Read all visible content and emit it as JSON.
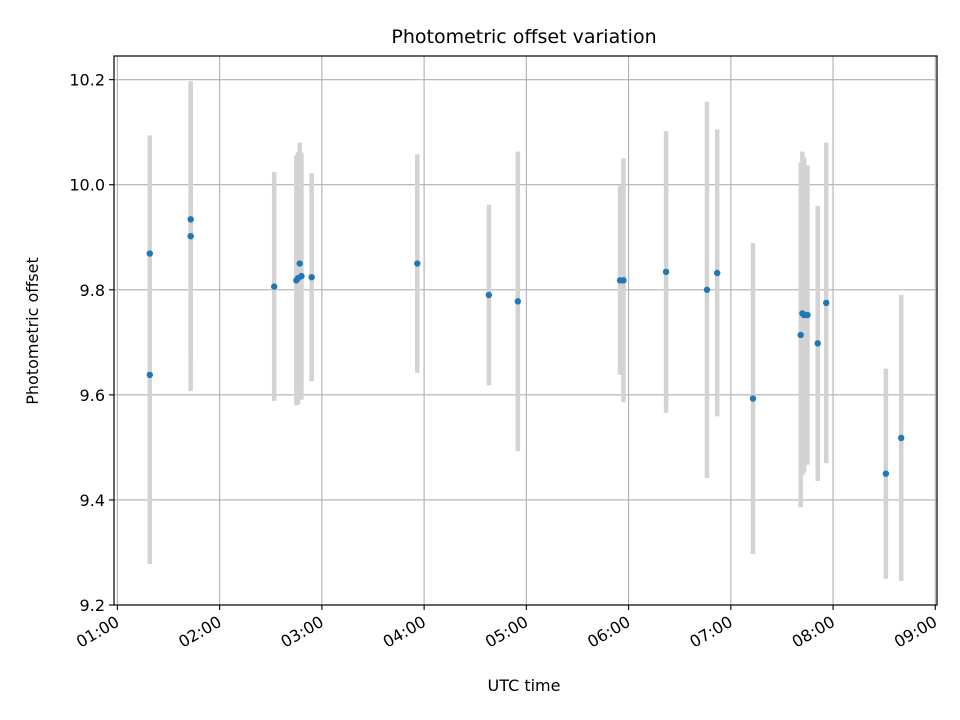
{
  "chart_data": {
    "type": "scatter",
    "title": "Photometric offset variation",
    "xlabel": "UTC time",
    "ylabel": "Photometric offset",
    "x_ticks": [
      "01:00",
      "02:00",
      "03:00",
      "04:00",
      "05:00",
      "06:00",
      "07:00",
      "08:00",
      "09:00"
    ],
    "y_ticks": [
      "9.2",
      "9.4",
      "9.6",
      "9.8",
      "10.0",
      "10.2"
    ],
    "xlim": [
      "00:58",
      "09:01"
    ],
    "ylim": [
      9.2,
      10.245
    ],
    "grid": true,
    "colors": {
      "point": "#1f77b4",
      "errorbar": "#d3d3d3",
      "grid": "#b0b0b0"
    },
    "points": [
      {
        "x": "01:19",
        "y": 9.638,
        "yerr": 0.36
      },
      {
        "x": "01:19",
        "y": 9.869,
        "yerr": 0.225
      },
      {
        "x": "01:43",
        "y": 9.902,
        "yerr": 0.295
      },
      {
        "x": "01:43",
        "y": 9.934,
        "yerr": 0.26
      },
      {
        "x": "02:32",
        "y": 9.806,
        "yerr": 0.218
      },
      {
        "x": "02:45",
        "y": 9.818,
        "yerr": 0.238
      },
      {
        "x": "02:46",
        "y": 9.822,
        "yerr": 0.24
      },
      {
        "x": "02:47",
        "y": 9.85,
        "yerr": 0.23
      },
      {
        "x": "02:48",
        "y": 9.826,
        "yerr": 0.235
      },
      {
        "x": "02:54",
        "y": 9.824,
        "yerr": 0.198
      },
      {
        "x": "03:56",
        "y": 9.85,
        "yerr": 0.208
      },
      {
        "x": "04:38",
        "y": 9.79,
        "yerr": 0.172
      },
      {
        "x": "04:55",
        "y": 9.778,
        "yerr": 0.285
      },
      {
        "x": "05:55",
        "y": 9.818,
        "yerr": 0.18
      },
      {
        "x": "05:57",
        "y": 9.818,
        "yerr": 0.232
      },
      {
        "x": "06:22",
        "y": 9.834,
        "yerr": 0.268
      },
      {
        "x": "06:46",
        "y": 9.8,
        "yerr": 0.358
      },
      {
        "x": "06:52",
        "y": 9.832,
        "yerr": 0.273
      },
      {
        "x": "07:13",
        "y": 9.593,
        "yerr": 0.296
      },
      {
        "x": "07:41",
        "y": 9.714,
        "yerr": 0.328
      },
      {
        "x": "07:42",
        "y": 9.755,
        "yerr": 0.308
      },
      {
        "x": "07:43",
        "y": 9.752,
        "yerr": 0.3
      },
      {
        "x": "07:45",
        "y": 9.752,
        "yerr": 0.285
      },
      {
        "x": "07:51",
        "y": 9.698,
        "yerr": 0.262
      },
      {
        "x": "07:56",
        "y": 9.775,
        "yerr": 0.305
      },
      {
        "x": "08:31",
        "y": 9.45,
        "yerr": 0.2
      },
      {
        "x": "08:40",
        "y": 9.518,
        "yerr": 0.272
      }
    ]
  }
}
